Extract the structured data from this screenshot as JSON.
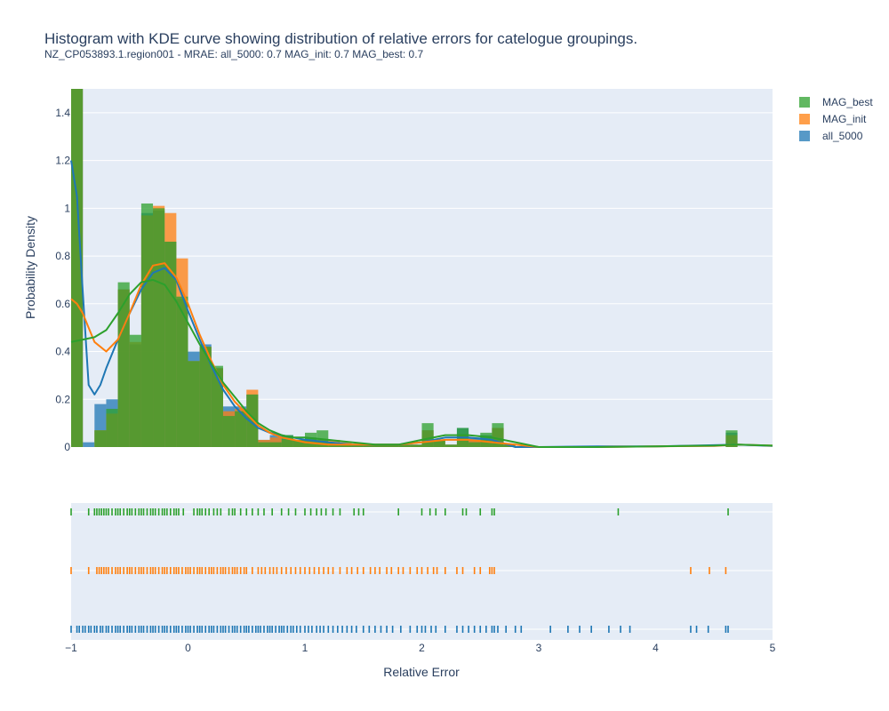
{
  "title": "Histogram with KDE curve showing distribution of relative errors for catelogue groupings.",
  "subtitle": "NZ_CP053893.1.region001 - MRAE: all_5000: 0.7 MAG_init: 0.7 MAG_best: 0.7",
  "chart_data": {
    "type": "bar",
    "xlabel": "Relative Error",
    "ylabel": "Probability Density",
    "xlim": [
      -1,
      5
    ],
    "ylim": [
      0,
      1.5
    ],
    "xticks": [
      "−1",
      "0",
      "1",
      "2",
      "3",
      "4",
      "5"
    ],
    "yticks": [
      "0",
      "0.2",
      "0.4",
      "0.6",
      "0.8",
      "1",
      "1.2",
      "1.4"
    ],
    "bin_width": 0.1,
    "bin_starts": [
      -1.0,
      -0.9,
      -0.8,
      -0.7,
      -0.6,
      -0.5,
      -0.4,
      -0.3,
      -0.2,
      -0.1,
      0.0,
      0.1,
      0.2,
      0.3,
      0.4,
      0.5,
      0.6,
      0.7,
      0.8,
      0.9,
      1.0,
      1.1,
      1.2,
      1.3,
      1.4,
      1.5,
      1.6,
      1.7,
      1.8,
      1.9,
      2.0,
      2.1,
      2.2,
      2.3,
      2.4,
      2.5,
      2.6,
      2.7,
      4.6
    ],
    "grid": true,
    "legend_position": "top-right",
    "series": [
      {
        "name": "all_5000",
        "color": "#1f77b4",
        "bin_values": [
          1.5,
          0.02,
          0.18,
          0.2,
          0.66,
          0.43,
          0.98,
          0.99,
          0.86,
          0.62,
          0.4,
          0.43,
          0.33,
          0.17,
          0.17,
          0.22,
          0.03,
          0.05,
          0.05,
          0.03,
          0.04,
          0.02,
          0.02,
          0.01,
          0.01,
          0.01,
          0.01,
          0.01,
          0.01,
          0.01,
          0.07,
          0.03,
          0.01,
          0.08,
          0.04,
          0.05,
          0.08,
          0.01,
          0.06
        ],
        "kde_x": [
          -1.0,
          -0.95,
          -0.9,
          -0.85,
          -0.8,
          -0.75,
          -0.7,
          -0.6,
          -0.5,
          -0.4,
          -0.3,
          -0.2,
          -0.1,
          0.0,
          0.1,
          0.2,
          0.3,
          0.4,
          0.5,
          0.6,
          0.7,
          0.8,
          0.9,
          1.0,
          1.2,
          1.4,
          1.6,
          1.8,
          2.0,
          2.2,
          2.4,
          2.6,
          2.8,
          3.0,
          3.5,
          4.0,
          4.5,
          4.7,
          5.0
        ],
        "kde_y": [
          1.2,
          1.05,
          0.65,
          0.26,
          0.22,
          0.26,
          0.33,
          0.45,
          0.56,
          0.66,
          0.73,
          0.75,
          0.7,
          0.57,
          0.45,
          0.34,
          0.24,
          0.17,
          0.12,
          0.08,
          0.06,
          0.05,
          0.04,
          0.03,
          0.02,
          0.01,
          0.01,
          0.01,
          0.02,
          0.04,
          0.04,
          0.03,
          0.0,
          0.0,
          0.003,
          0.003,
          0.008,
          0.01,
          0.005
        ]
      },
      {
        "name": "MAG_init",
        "color": "#ff7f0e",
        "bin_values": [
          1.5,
          0.0,
          0.07,
          0.14,
          0.66,
          0.44,
          0.97,
          1.01,
          0.98,
          0.79,
          0.36,
          0.42,
          0.33,
          0.15,
          0.16,
          0.24,
          0.03,
          0.04,
          0.03,
          0.03,
          0.03,
          0.03,
          0.03,
          0.02,
          0.01,
          0.01,
          0.01,
          0.01,
          0.01,
          0.01,
          0.07,
          0.03,
          0.01,
          0.05,
          0.03,
          0.03,
          0.08,
          0.01,
          0.05
        ],
        "kde_x": [
          -1.0,
          -0.95,
          -0.9,
          -0.85,
          -0.8,
          -0.7,
          -0.6,
          -0.5,
          -0.4,
          -0.3,
          -0.2,
          -0.1,
          0.0,
          0.1,
          0.2,
          0.3,
          0.4,
          0.5,
          0.6,
          0.7,
          0.8,
          0.9,
          1.0,
          1.2,
          1.4,
          1.6,
          1.8,
          2.0,
          2.2,
          2.4,
          2.6,
          2.8,
          3.0,
          3.5,
          4.0,
          4.5,
          4.7,
          5.0
        ],
        "kde_y": [
          0.62,
          0.6,
          0.56,
          0.5,
          0.44,
          0.4,
          0.45,
          0.56,
          0.68,
          0.76,
          0.77,
          0.71,
          0.6,
          0.47,
          0.36,
          0.26,
          0.19,
          0.14,
          0.09,
          0.06,
          0.04,
          0.03,
          0.02,
          0.01,
          0.01,
          0.01,
          0.01,
          0.02,
          0.03,
          0.03,
          0.02,
          0.01,
          0.0,
          0.0,
          0.003,
          0.005,
          0.01,
          0.006
        ]
      },
      {
        "name": "MAG_best",
        "color": "#2ca02c",
        "bin_values": [
          1.5,
          0.0,
          0.07,
          0.16,
          0.69,
          0.47,
          1.02,
          1.0,
          0.86,
          0.63,
          0.36,
          0.42,
          0.34,
          0.13,
          0.15,
          0.22,
          0.02,
          0.02,
          0.05,
          0.03,
          0.06,
          0.07,
          0.02,
          0.01,
          0.01,
          0.01,
          0.01,
          0.01,
          0.01,
          0.01,
          0.1,
          0.03,
          0.01,
          0.08,
          0.02,
          0.06,
          0.1,
          0.01,
          0.07
        ],
        "kde_x": [
          -1.0,
          -0.9,
          -0.8,
          -0.7,
          -0.6,
          -0.5,
          -0.4,
          -0.3,
          -0.2,
          -0.1,
          0.0,
          0.1,
          0.2,
          0.3,
          0.4,
          0.5,
          0.6,
          0.7,
          0.8,
          0.9,
          1.0,
          1.2,
          1.4,
          1.6,
          1.8,
          2.0,
          2.2,
          2.4,
          2.6,
          2.8,
          3.0,
          3.5,
          4.0,
          4.5,
          4.7,
          5.0
        ],
        "kde_y": [
          0.44,
          0.45,
          0.46,
          0.49,
          0.56,
          0.64,
          0.69,
          0.7,
          0.68,
          0.61,
          0.52,
          0.43,
          0.35,
          0.27,
          0.21,
          0.15,
          0.1,
          0.07,
          0.05,
          0.04,
          0.04,
          0.03,
          0.02,
          0.01,
          0.01,
          0.03,
          0.05,
          0.05,
          0.04,
          0.02,
          0.0,
          0.0,
          0.003,
          0.006,
          0.01,
          0.006
        ]
      }
    ],
    "rug": {
      "rows": [
        "MAG_best",
        "MAG_init",
        "all_5000"
      ],
      "values": {
        "all_5000": [
          -1.0,
          -0.95,
          -0.93,
          -0.9,
          -0.88,
          -0.85,
          -0.83,
          -0.8,
          -0.78,
          -0.75,
          -0.73,
          -0.7,
          -0.68,
          -0.65,
          -0.62,
          -0.6,
          -0.58,
          -0.55,
          -0.52,
          -0.5,
          -0.48,
          -0.45,
          -0.42,
          -0.4,
          -0.38,
          -0.35,
          -0.32,
          -0.3,
          -0.28,
          -0.25,
          -0.22,
          -0.2,
          -0.18,
          -0.15,
          -0.12,
          -0.1,
          -0.08,
          -0.05,
          -0.02,
          0.0,
          0.02,
          0.05,
          0.08,
          0.1,
          0.12,
          0.15,
          0.18,
          0.2,
          0.22,
          0.25,
          0.28,
          0.3,
          0.32,
          0.35,
          0.38,
          0.4,
          0.42,
          0.45,
          0.48,
          0.5,
          0.52,
          0.55,
          0.58,
          0.6,
          0.62,
          0.65,
          0.68,
          0.7,
          0.72,
          0.75,
          0.78,
          0.8,
          0.82,
          0.85,
          0.88,
          0.9,
          0.93,
          0.96,
          1.0,
          1.03,
          1.06,
          1.1,
          1.13,
          1.16,
          1.2,
          1.24,
          1.28,
          1.32,
          1.36,
          1.4,
          1.44,
          1.5,
          1.55,
          1.6,
          1.65,
          1.7,
          1.75,
          1.82,
          1.9,
          1.96,
          2.0,
          2.03,
          2.08,
          2.12,
          2.2,
          2.3,
          2.35,
          2.4,
          2.45,
          2.5,
          2.55,
          2.6,
          2.62,
          2.65,
          2.72,
          2.8,
          2.85,
          3.1,
          3.25,
          3.35,
          3.45,
          3.6,
          3.7,
          3.78,
          4.3,
          4.35,
          4.45,
          4.6,
          4.62
        ],
        "MAG_init": [
          -1.0,
          -0.85,
          -0.78,
          -0.76,
          -0.74,
          -0.72,
          -0.7,
          -0.68,
          -0.65,
          -0.62,
          -0.6,
          -0.58,
          -0.55,
          -0.52,
          -0.5,
          -0.48,
          -0.45,
          -0.42,
          -0.4,
          -0.38,
          -0.35,
          -0.32,
          -0.3,
          -0.28,
          -0.25,
          -0.22,
          -0.2,
          -0.18,
          -0.15,
          -0.12,
          -0.1,
          -0.08,
          -0.05,
          -0.02,
          0.0,
          0.02,
          0.05,
          0.08,
          0.1,
          0.12,
          0.15,
          0.18,
          0.2,
          0.22,
          0.25,
          0.28,
          0.3,
          0.32,
          0.35,
          0.38,
          0.4,
          0.42,
          0.45,
          0.48,
          0.5,
          0.55,
          0.6,
          0.63,
          0.66,
          0.7,
          0.73,
          0.76,
          0.8,
          0.84,
          0.88,
          0.92,
          0.96,
          1.0,
          1.04,
          1.08,
          1.12,
          1.16,
          1.2,
          1.24,
          1.3,
          1.36,
          1.4,
          1.45,
          1.5,
          1.56,
          1.6,
          1.64,
          1.7,
          1.74,
          1.8,
          1.84,
          1.9,
          1.96,
          2.0,
          2.05,
          2.1,
          2.13,
          2.2,
          2.3,
          2.35,
          2.45,
          2.5,
          2.58,
          2.6,
          2.62,
          4.3,
          4.46,
          4.6
        ],
        "MAG_best": [
          -1.0,
          -0.85,
          -0.8,
          -0.78,
          -0.76,
          -0.74,
          -0.72,
          -0.7,
          -0.68,
          -0.65,
          -0.62,
          -0.6,
          -0.58,
          -0.55,
          -0.52,
          -0.5,
          -0.48,
          -0.45,
          -0.42,
          -0.4,
          -0.38,
          -0.35,
          -0.32,
          -0.3,
          -0.28,
          -0.25,
          -0.22,
          -0.2,
          -0.18,
          -0.15,
          -0.12,
          -0.1,
          -0.08,
          -0.04,
          0.05,
          0.08,
          0.1,
          0.12,
          0.15,
          0.18,
          0.22,
          0.25,
          0.28,
          0.35,
          0.38,
          0.4,
          0.45,
          0.5,
          0.55,
          0.6,
          0.65,
          0.72,
          0.8,
          0.86,
          0.92,
          1.0,
          1.05,
          1.1,
          1.14,
          1.18,
          1.24,
          1.3,
          1.42,
          1.46,
          1.5,
          1.8,
          2.0,
          2.07,
          2.12,
          2.2,
          2.35,
          2.38,
          2.5,
          2.6,
          2.62,
          3.68,
          4.62
        ]
      }
    }
  }
}
